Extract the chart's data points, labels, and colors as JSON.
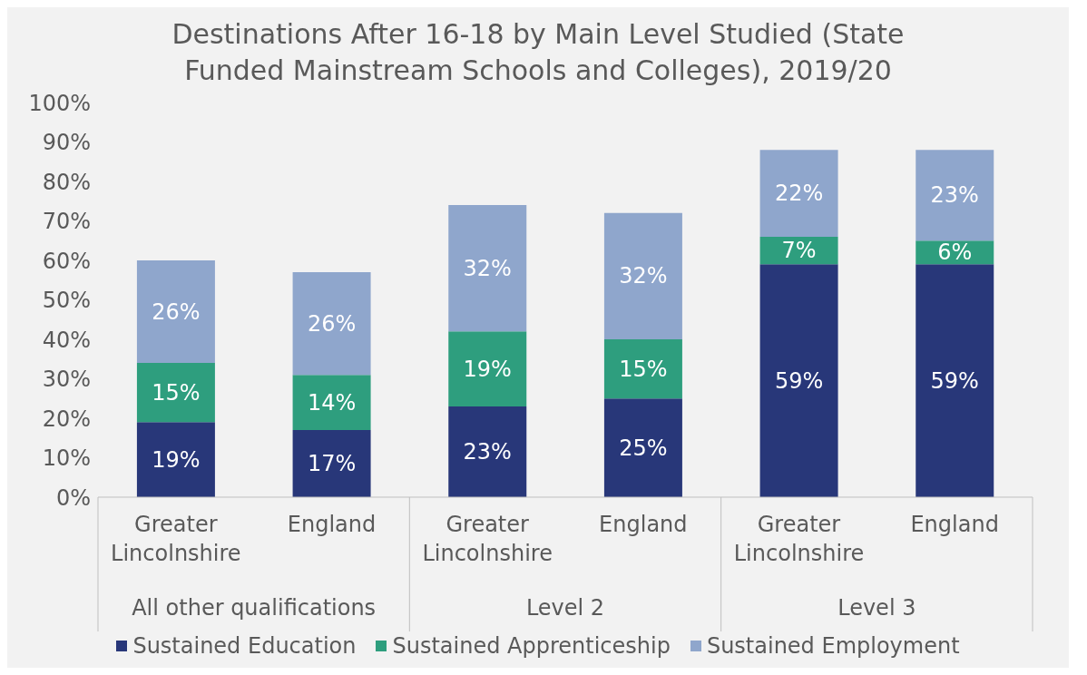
{
  "chart_data": {
    "type": "bar",
    "title": "Destinations After 16-18 by Main Level Studied (State Funded Mainstream Schools and Colleges), 2019/20",
    "categories": [
      "Greater Lincolnshire",
      "England",
      "Greater Lincolnshire",
      "England",
      "Greater Lincolnshire",
      "England"
    ],
    "stacked": true,
    "series": [
      {
        "name": "Sustained Education",
        "color": "#283779",
        "values": [
          19,
          17,
          23,
          25,
          59,
          59
        ],
        "value_labels": [
          "19%",
          "17%",
          "23%",
          "25%",
          "59%",
          "59%"
        ]
      },
      {
        "name": "Sustained Apprenticeship",
        "color": "#2e9e7e",
        "values": [
          15,
          14,
          19,
          15,
          7,
          6
        ],
        "value_labels": [
          "15%",
          "14%",
          "19%",
          "15%",
          "7%",
          "6%"
        ]
      },
      {
        "name": "Sustained Employment",
        "color": "#8fa6cc",
        "values": [
          26,
          26,
          32,
          32,
          22,
          23
        ],
        "value_labels": [
          "26%",
          "26%",
          "32%",
          "32%",
          "22%",
          "23%"
        ]
      }
    ],
    "ylim": [
      0,
      100
    ],
    "yticks": [
      {
        "value": 0,
        "label": "0%"
      },
      {
        "value": 10,
        "label": "10%"
      },
      {
        "value": 20,
        "label": "20%"
      },
      {
        "value": 30,
        "label": "30%"
      },
      {
        "value": 40,
        "label": "40%"
      },
      {
        "value": 50,
        "label": "50%"
      },
      {
        "value": 60,
        "label": "60%"
      },
      {
        "value": 70,
        "label": "70%"
      },
      {
        "value": 80,
        "label": "80%"
      },
      {
        "value": 90,
        "label": "90%"
      },
      {
        "value": 100,
        "label": "100%"
      }
    ],
    "annotations": [
      "All other qualifications",
      "Level 2",
      "Level 3"
    ],
    "grid": false,
    "legend": "bottom"
  }
}
